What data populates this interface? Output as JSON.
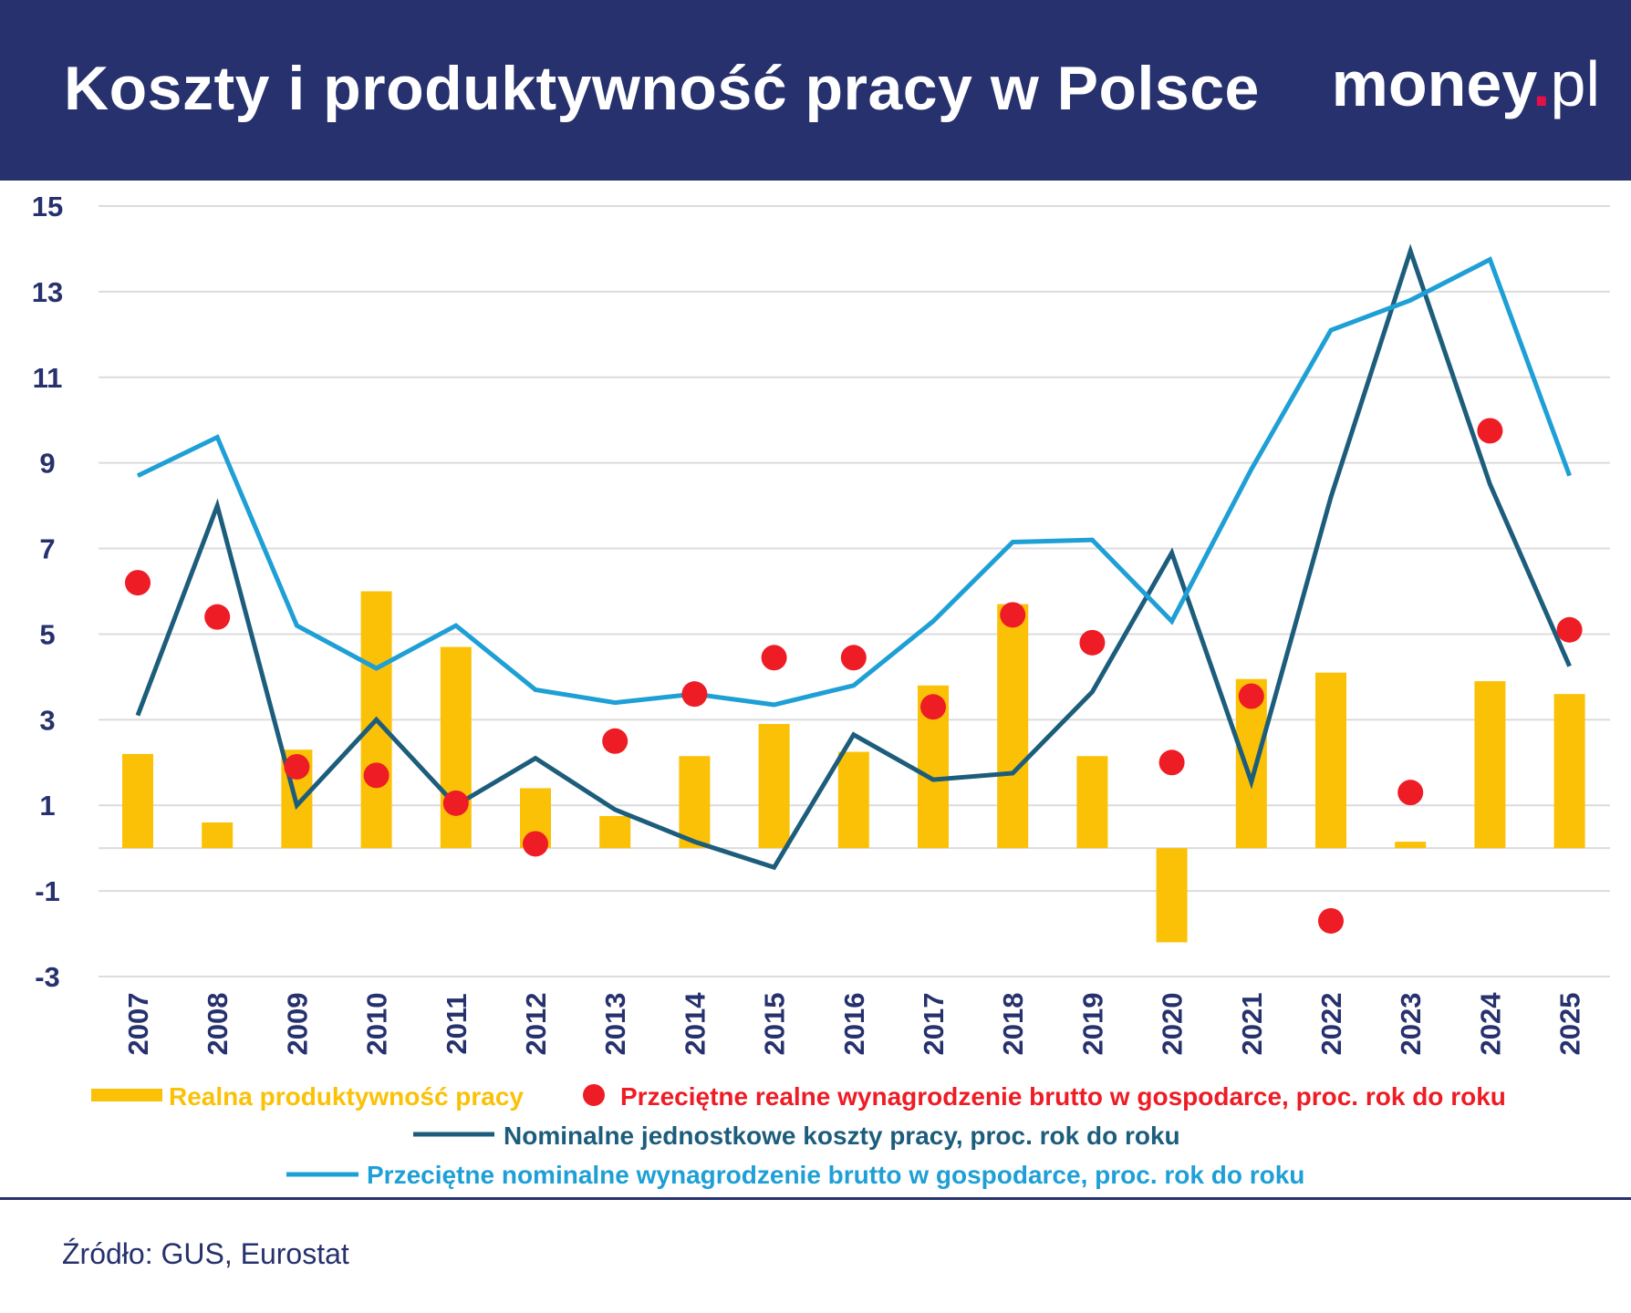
{
  "header": {
    "title": "Koszty i produktywność pracy w Polsce",
    "logo_main": "money",
    "logo_dot": ".",
    "logo_tld": "pl"
  },
  "footer": {
    "source": "Źródło: GUS, Eurostat"
  },
  "colors": {
    "header_bg": "#26316d",
    "productivity": "#fbc106",
    "real_wage": "#ee1c25",
    "unit_labour_cost": "#1d5d7c",
    "nominal_wage": "#1e9fd6",
    "axis_text": "#26316d",
    "grid": "#dcdcdc"
  },
  "chart_data": {
    "type": "bar",
    "categories": [
      "2007",
      "2008",
      "2009",
      "2010",
      "2011",
      "2012",
      "2013",
      "2014",
      "2015",
      "2016",
      "2017",
      "2018",
      "2019",
      "2020",
      "2021",
      "2022",
      "2023",
      "2024",
      "2025"
    ],
    "ylim": [
      -3,
      15
    ],
    "yticks": [
      15,
      13,
      11,
      9,
      7,
      5,
      3,
      1,
      -1,
      -3
    ],
    "grid": true,
    "legend_position": "bottom",
    "series": [
      {
        "name": "Realna produktywność pracy",
        "kind": "bar",
        "color": "#fbc106",
        "values": [
          2.2,
          0.6,
          2.3,
          6.0,
          4.7,
          1.4,
          0.75,
          2.15,
          2.9,
          2.25,
          3.8,
          5.7,
          2.15,
          -2.2,
          3.95,
          4.1,
          0.15,
          3.9,
          3.6
        ]
      },
      {
        "name": "Przeciętne realne wynagrodzenie brutto w gospodarce, proc. rok do roku",
        "kind": "scatter",
        "color": "#ee1c25",
        "values": [
          6.2,
          5.4,
          1.9,
          1.7,
          1.05,
          0.1,
          2.5,
          3.6,
          4.45,
          4.45,
          3.3,
          5.45,
          4.8,
          2.0,
          3.55,
          -1.7,
          1.3,
          9.75,
          5.1
        ]
      },
      {
        "name": "Nominalne jednostkowe koszty pracy, proc. rok do roku",
        "kind": "line",
        "color": "#1d5d7c",
        "values": [
          3.1,
          8.0,
          1.0,
          3.0,
          1.0,
          2.1,
          0.9,
          0.15,
          -0.45,
          2.65,
          1.6,
          1.75,
          3.65,
          6.9,
          1.55,
          8.2,
          13.95,
          8.5,
          4.25
        ]
      },
      {
        "name": "Przeciętne nominalne wynagrodzenie brutto w gospodarce, proc. rok do roku",
        "kind": "line",
        "color": "#1e9fd6",
        "values": [
          8.7,
          9.6,
          5.2,
          4.2,
          5.2,
          3.7,
          3.4,
          3.6,
          3.35,
          3.8,
          5.3,
          7.15,
          7.2,
          5.3,
          8.85,
          12.1,
          12.8,
          13.75,
          8.7
        ]
      }
    ]
  }
}
